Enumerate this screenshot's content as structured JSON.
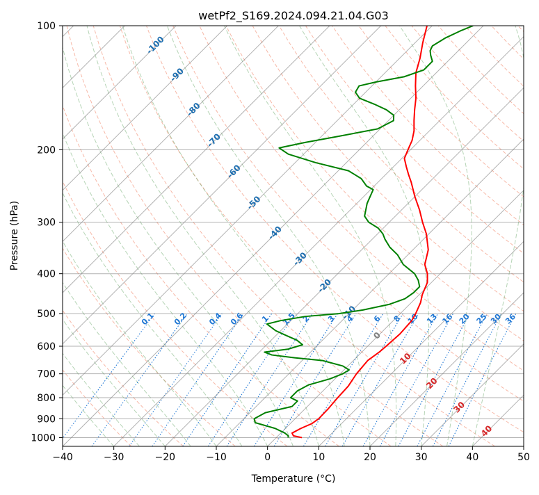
{
  "chart_data": {
    "type": "skew-t",
    "title": "wetPf2_S169.2024.094.21.04.G03",
    "xlabel": "Temperature (°C)",
    "ylabel": "Pressure (hPa)",
    "xlim": [
      -40,
      50
    ],
    "ylim": [
      1050,
      100
    ],
    "y_scale": "log",
    "grid": true,
    "skew": 45,
    "x_ticks": [
      -40,
      -30,
      -20,
      -10,
      0,
      10,
      20,
      30,
      40,
      50
    ],
    "y_ticks": [
      1000,
      900,
      800,
      700,
      600,
      500,
      400,
      300,
      200,
      100
    ],
    "colors": {
      "temperature": "#ff0000",
      "dewpoint": "#008000",
      "dry_adiabat": "#f08060",
      "moist_adiabat": "#5aa05a",
      "mixing_ratio": "#1f77d4",
      "isotherm": "#808080",
      "isotherm_label_blue": "#1f6fb0",
      "isotherm_label_red": "#d62728",
      "freezing_label": "#808080"
    },
    "series": [
      {
        "name": "Temperature",
        "points": [
          [
            1000,
            5.0
          ],
          [
            990,
            3.0
          ],
          [
            975,
            2.2
          ],
          [
            950,
            3.0
          ],
          [
            925,
            4.2
          ],
          [
            900,
            4.6
          ],
          [
            850,
            4.5
          ],
          [
            800,
            4.2
          ],
          [
            750,
            4.0
          ],
          [
            700,
            3.2
          ],
          [
            650,
            2.8
          ],
          [
            620,
            3.4
          ],
          [
            600,
            3.6
          ],
          [
            560,
            3.9
          ],
          [
            520,
            3.6
          ],
          [
            500,
            3.0
          ],
          [
            470,
            1.8
          ],
          [
            450,
            0.6
          ],
          [
            420,
            -0.8
          ],
          [
            400,
            -2.5
          ],
          [
            380,
            -4.8
          ],
          [
            350,
            -7.0
          ],
          [
            320,
            -10.5
          ],
          [
            300,
            -13.5
          ],
          [
            280,
            -16.5
          ],
          [
            260,
            -20.0
          ],
          [
            240,
            -23.5
          ],
          [
            230,
            -25.5
          ],
          [
            220,
            -27.5
          ],
          [
            210,
            -29.5
          ],
          [
            200,
            -30.5
          ],
          [
            190,
            -31.5
          ],
          [
            180,
            -33.0
          ],
          [
            170,
            -35.0
          ],
          [
            160,
            -37.0
          ],
          [
            150,
            -39.0
          ],
          [
            140,
            -41.5
          ],
          [
            130,
            -44.0
          ],
          [
            120,
            -46.0
          ],
          [
            110,
            -48.5
          ],
          [
            100,
            -51.0
          ]
        ]
      },
      {
        "name": "Dewpoint",
        "points": [
          [
            1000,
            2.3
          ],
          [
            990,
            2.0
          ],
          [
            975,
            0.8
          ],
          [
            950,
            -2.0
          ],
          [
            920,
            -7.0
          ],
          [
            900,
            -8.0
          ],
          [
            870,
            -7.0
          ],
          [
            840,
            -3.0
          ],
          [
            815,
            -3.0
          ],
          [
            800,
            -5.0
          ],
          [
            770,
            -5.0
          ],
          [
            745,
            -4.0
          ],
          [
            720,
            -1.0
          ],
          [
            700,
            0.5
          ],
          [
            685,
            1.0
          ],
          [
            670,
            -1.0
          ],
          [
            650,
            -6.0
          ],
          [
            640,
            -12.0
          ],
          [
            630,
            -17.0
          ],
          [
            620,
            -19.0
          ],
          [
            610,
            -15.0
          ],
          [
            595,
            -13.0
          ],
          [
            580,
            -15.0
          ],
          [
            565,
            -18.0
          ],
          [
            550,
            -21.0
          ],
          [
            530,
            -24.0
          ],
          [
            520,
            -22.0
          ],
          [
            508,
            -18.0
          ],
          [
            500,
            -12.0
          ],
          [
            490,
            -8.0
          ],
          [
            475,
            -4.0
          ],
          [
            460,
            -2.0
          ],
          [
            445,
            -1.5
          ],
          [
            430,
            -1.5
          ],
          [
            415,
            -3.0
          ],
          [
            400,
            -5.0
          ],
          [
            380,
            -9.0
          ],
          [
            360,
            -12.0
          ],
          [
            345,
            -15.0
          ],
          [
            330,
            -17.5
          ],
          [
            320,
            -19.0
          ],
          [
            310,
            -21.0
          ],
          [
            300,
            -24.0
          ],
          [
            290,
            -26.0
          ],
          [
            270,
            -28.0
          ],
          [
            250,
            -29.5
          ],
          [
            245,
            -31.5
          ],
          [
            235,
            -34.0
          ],
          [
            225,
            -38.0
          ],
          [
            215,
            -46.0
          ],
          [
            205,
            -53.0
          ],
          [
            198,
            -56.0
          ],
          [
            192,
            -52.0
          ],
          [
            186,
            -47.0
          ],
          [
            178,
            -40.5
          ],
          [
            170,
            -39.0
          ],
          [
            165,
            -40.0
          ],
          [
            160,
            -42.5
          ],
          [
            155,
            -46.0
          ],
          [
            150,
            -50.0
          ],
          [
            145,
            -52.0
          ],
          [
            140,
            -52.5
          ],
          [
            137,
            -50.0
          ],
          [
            133,
            -45.5
          ],
          [
            128,
            -43.0
          ],
          [
            122,
            -43.0
          ],
          [
            118,
            -44.5
          ],
          [
            115,
            -45.5
          ],
          [
            112,
            -46.0
          ],
          [
            107,
            -45.0
          ],
          [
            103,
            -43.5
          ],
          [
            100,
            -42.0
          ]
        ]
      }
    ],
    "isotherm_labels": [
      {
        "t": "-100",
        "p": 111
      },
      {
        "t": "-90",
        "p": 131
      },
      {
        "t": "-80",
        "p": 159
      },
      {
        "t": "-70",
        "p": 189
      },
      {
        "t": "-60",
        "p": 225
      },
      {
        "t": "-50",
        "p": 268
      },
      {
        "t": "-40",
        "p": 317
      },
      {
        "t": "-30",
        "p": 367
      },
      {
        "t": "-20",
        "p": 426
      },
      {
        "t": "-10",
        "p": 495
      },
      {
        "t": "0",
        "p": 563
      },
      {
        "t": "10",
        "p": 640
      },
      {
        "t": "20",
        "p": 735
      },
      {
        "t": "30",
        "p": 840
      },
      {
        "t": "40",
        "p": 960
      }
    ],
    "mixing_ratio_labels": [
      "0.1",
      "0.2",
      "0.4",
      "0.6",
      "1",
      "1.5",
      "2",
      "3",
      "4",
      "6",
      "8",
      "10",
      "13",
      "16",
      "20",
      "25",
      "30",
      "36"
    ]
  }
}
